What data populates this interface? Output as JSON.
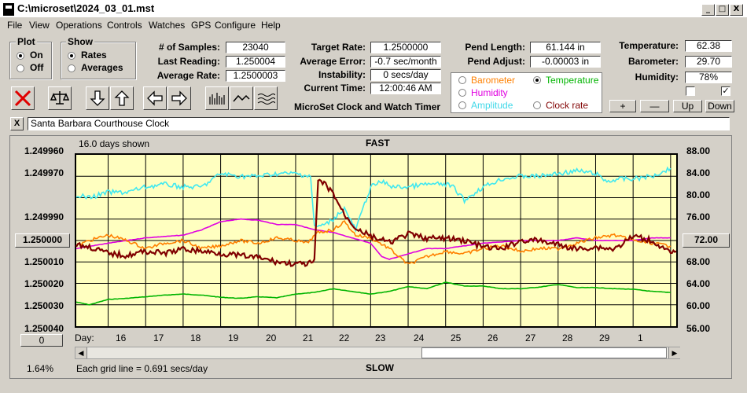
{
  "window": {
    "title": "C:\\microset\\2024_03_01.mst",
    "min_glyph": "_",
    "max_glyph": "□",
    "close_glyph": "X"
  },
  "menu": [
    "File",
    "View",
    "Operations",
    "Controls",
    "Watches",
    "GPS",
    "Configure",
    "Help"
  ],
  "plot_group": {
    "label": "Plot",
    "on": "On",
    "off": "Off"
  },
  "show_group": {
    "label": "Show",
    "rates": "Rates",
    "averages": "Averages"
  },
  "stats": {
    "samples_label": "# of Samples:",
    "samples": "23040",
    "last_label": "Last Reading:",
    "last": "1.250004",
    "avg_label": "Average Rate:",
    "avg": "1.2500003",
    "target_label": "Target Rate:",
    "target": "1.2500000",
    "avg_err_label": "Average Error:",
    "avg_err": "-0.7 sec/month",
    "instab_label": "Instability:",
    "instab": "0 secs/day",
    "time_label": "Current Time:",
    "time": "12:00:46 AM",
    "pend_len_label": "Pend Length:",
    "pend_len": "61.144 in",
    "pend_adj_label": "Pend Adjust:",
    "pend_adj": "-0.00003 in",
    "temp_label": "Temperature:",
    "temp": "62.38",
    "baro_label": "Barometer:",
    "baro": "29.70",
    "hum_label": "Humidity:",
    "hum": "78%"
  },
  "app_caption": "MicroSet Clock and Watch Timer",
  "sensors": {
    "barometer": "Barometer",
    "temperature": "Temperature",
    "humidity": "Humidity",
    "amplitude": "Amplitude",
    "clock_rate": "Clock rate"
  },
  "buttons": {
    "plus": "+",
    "minus": "—",
    "up": "Up",
    "down": "Down",
    "x_small": "X"
  },
  "clock_name": "Santa Barbara Courthouse Clock",
  "colors": {
    "rate": "#800000",
    "temperature": "#00b400",
    "humidity": "#e000e0",
    "barometer": "#ff8000",
    "amplitude": "#40e8f0",
    "plot_bg": "#ffffc0"
  },
  "chart_data": {
    "type": "line",
    "title_top": "FAST",
    "title_bottom": "SLOW",
    "days_shown": "16.0 days shown",
    "grid_note": "Each grid line = 0.691 secs/day",
    "percent": "1.64%",
    "zero_btn": "0",
    "center_btn": "1.250000",
    "right_center_btn": "72.00",
    "day_axis_label": "Day:",
    "x_ticks": [
      "16",
      "17",
      "18",
      "19",
      "20",
      "21",
      "22",
      "23",
      "24",
      "25",
      "26",
      "27",
      "28",
      "29",
      "1"
    ],
    "left_ticks": [
      "1.249960",
      "1.249970",
      "1.249980",
      "1.249990",
      "1.250000",
      "1.250010",
      "1.250020",
      "1.250030",
      "1.250040"
    ],
    "left_tick_labels": [
      "1.249960",
      "1.249970",
      "",
      "1.249990",
      "",
      "1.250010",
      "1.250020",
      "1.250030",
      "1.250040"
    ],
    "right_ticks": [
      "88.00",
      "84.00",
      "80.00",
      "76.00",
      "72.00",
      "68.00",
      "64.00",
      "60.00",
      "56.00"
    ],
    "right_tick_labels": [
      "88.00",
      "84.00",
      "80.00",
      "76.00",
      "",
      "68.00",
      "64.00",
      "60.00",
      "56.00"
    ],
    "x_range_days": [
      15.15,
      31.15
    ],
    "left_range": [
      1.24996,
      1.25004
    ],
    "right_range": [
      56,
      88
    ],
    "series": [
      {
        "name": "Clock rate",
        "color": "#800000",
        "axis": "left",
        "x": [
          15.15,
          15.5,
          16,
          16.5,
          17,
          17.5,
          18,
          18.5,
          19,
          19.5,
          20,
          20.5,
          21,
          21.3,
          21.5,
          21.6,
          21.8,
          22,
          22.3,
          22.6,
          23,
          23.5,
          24,
          24.5,
          25,
          25.5,
          26,
          26.5,
          27,
          27.5,
          28,
          28.5,
          29,
          29.5,
          30,
          30.5,
          31,
          31.15
        ],
        "y": [
          1.250002,
          1.250003,
          1.250006,
          1.250007,
          1.250005,
          1.250006,
          1.250004,
          1.250005,
          1.250006,
          1.250007,
          1.250008,
          1.25001,
          1.250011,
          1.250011,
          1.25001,
          1.249972,
          1.249974,
          1.249978,
          1.249988,
          1.249994,
          1.249998,
          1.250001,
          1.249997,
          1.249999,
          1.249999,
          1.25,
          1.250003,
          1.250004,
          1.25,
          1.25,
          1.250002,
          1.250004,
          1.250003,
          1.250004,
          1.249998,
          1.25,
          1.250006,
          1.250005
        ]
      },
      {
        "name": "Temperature",
        "color": "#00b400",
        "axis": "right",
        "x": [
          15.15,
          15.5,
          16,
          16.5,
          17,
          17.5,
          18,
          18.5,
          19,
          19.5,
          20,
          20.5,
          21,
          21.5,
          22,
          22.5,
          23,
          23.5,
          24,
          24.5,
          25,
          25.5,
          26,
          26.5,
          27,
          27.5,
          28,
          28.5,
          29,
          29.5,
          30,
          30.5,
          31
        ],
        "y": [
          60.5,
          60.0,
          61.0,
          61.2,
          61.5,
          61.8,
          62.0,
          61.8,
          61.4,
          61.2,
          61.5,
          61.3,
          62.0,
          62.3,
          63.0,
          62.5,
          62.0,
          62.5,
          63.4,
          63.0,
          64.2,
          63.5,
          63.5,
          63.0,
          63.0,
          63.3,
          63.8,
          63.2,
          63.2,
          63.0,
          62.9,
          62.5,
          62.3
        ]
      },
      {
        "name": "Humidity",
        "color": "#e000e0",
        "axis": "right",
        "x": [
          15.15,
          16,
          17,
          18,
          18.5,
          19,
          19.5,
          20,
          20.5,
          21,
          21.5,
          22,
          22.5,
          23,
          23.3,
          23.5,
          24,
          24.5,
          25,
          25.5,
          26,
          27,
          28,
          28.5,
          29,
          30,
          30.5,
          31
        ],
        "y": [
          70.5,
          71.5,
          72.5,
          73.0,
          74.0,
          75.5,
          76.0,
          75.8,
          75.0,
          75.0,
          74.0,
          73.5,
          72.5,
          71.5,
          69.0,
          68.5,
          69.5,
          70.5,
          70.5,
          71.0,
          71.5,
          72.0,
          72.0,
          72.5,
          72.0,
          72.0,
          72.5,
          72.5
        ]
      },
      {
        "name": "Barometer",
        "color": "#ff8000",
        "axis": "right",
        "x": [
          15.15,
          15.5,
          16,
          16.5,
          17,
          17.5,
          18,
          18.5,
          19,
          19.5,
          20,
          20.5,
          21,
          21.3,
          21.6,
          22,
          22.3,
          22.6,
          23,
          23.5,
          24,
          24.5,
          25,
          25.5,
          26,
          26.5,
          27,
          27.5,
          28,
          28.5,
          29,
          29.5,
          30,
          30.5,
          31
        ],
        "y": [
          71.0,
          72.0,
          73.0,
          72.0,
          70.5,
          71.5,
          72.0,
          70.5,
          71.0,
          72.0,
          71.5,
          72.5,
          72.0,
          71.5,
          73.5,
          74.0,
          75.5,
          73.0,
          72.5,
          70.5,
          67.5,
          69.0,
          70.0,
          69.5,
          70.5,
          71.0,
          70.0,
          70.5,
          70.5,
          71.5,
          72.5,
          73.0,
          72.0,
          71.5,
          71.0
        ]
      },
      {
        "name": "Amplitude",
        "color": "#40e8f0",
        "axis": "right",
        "x": [
          15.15,
          15.5,
          16,
          16.5,
          17,
          17.5,
          18,
          18.5,
          19,
          19.5,
          20,
          20.5,
          21,
          21.4,
          21.5,
          21.8,
          22,
          22.3,
          22.6,
          23,
          23.3,
          23.6,
          24,
          24.5,
          25,
          25.2,
          25.5,
          26,
          26.5,
          27,
          27.5,
          28,
          28.5,
          29,
          29.3,
          29.6,
          30,
          30.5,
          31
        ],
        "y": [
          80.5,
          80.0,
          81.0,
          81.0,
          82.0,
          82.5,
          82.0,
          82.0,
          84.5,
          84.0,
          84.0,
          84.5,
          84.5,
          84.0,
          74.5,
          75.0,
          76.0,
          78.0,
          74.0,
          82.0,
          83.0,
          82.0,
          82.0,
          82.5,
          82.5,
          82.0,
          79.5,
          82.0,
          83.5,
          84.0,
          84.0,
          84.5,
          85.0,
          84.5,
          83.0,
          83.5,
          83.5,
          84.0,
          85.5
        ]
      }
    ]
  }
}
